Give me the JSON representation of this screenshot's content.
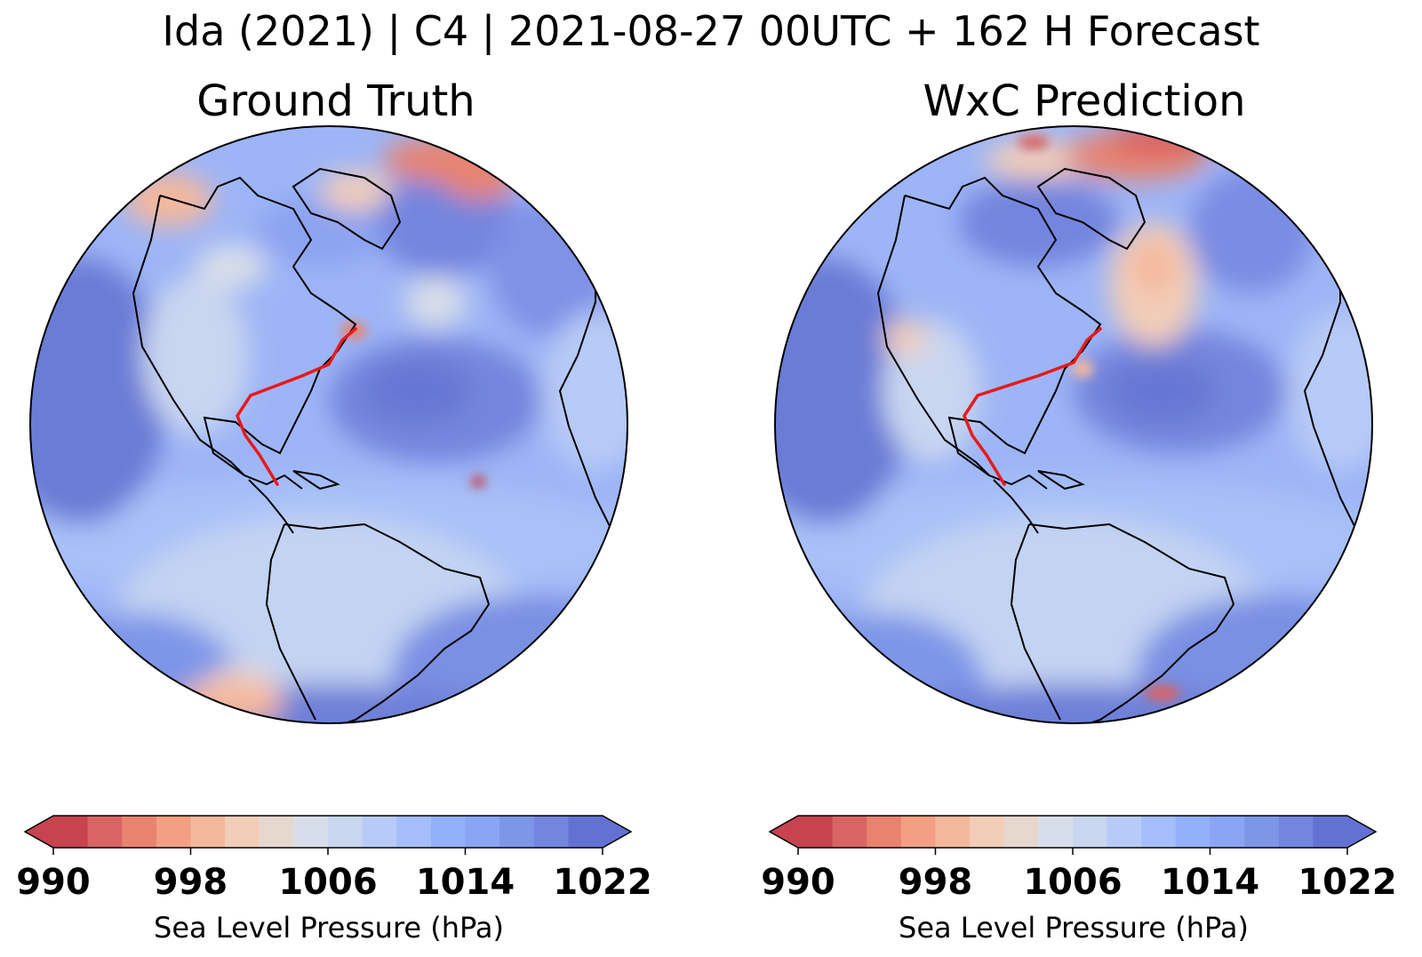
{
  "figure": {
    "title": "Ida (2021) | C4 | 2021-08-27 00UTC + 162 H Forecast"
  },
  "panels": [
    {
      "title": "Ground Truth",
      "colorbar": {
        "label": "Sea Level Pressure (hPa)",
        "ticks": [
          "990",
          "998",
          "1006",
          "1014",
          "1022"
        ],
        "tick_values": [
          990,
          998,
          1006,
          1014,
          1022
        ],
        "range": [
          990,
          1022
        ],
        "levels": 16,
        "extend": "both"
      },
      "track_color": "#e8191a"
    },
    {
      "title": "WxC Prediction",
      "colorbar": {
        "label": "Sea Level Pressure (hPa)",
        "ticks": [
          "990",
          "998",
          "1006",
          "1014",
          "1022"
        ],
        "tick_values": [
          990,
          998,
          1006,
          1014,
          1022
        ],
        "range": [
          990,
          1022
        ],
        "levels": 16,
        "extend": "both"
      },
      "track_color": "#e8191a"
    }
  ],
  "colormap": {
    "name": "coolwarm_r",
    "colors": [
      "#c6434f",
      "#d86563",
      "#e8836f",
      "#f29f84",
      "#f4b89c",
      "#f2cdb8",
      "#e6d7cf",
      "#d8dee9",
      "#c9d6f0",
      "#b7cbf6",
      "#a5bef9",
      "#93b0fa",
      "#8aa5f4",
      "#7e96e8",
      "#7385de",
      "#6372d2"
    ]
  }
}
